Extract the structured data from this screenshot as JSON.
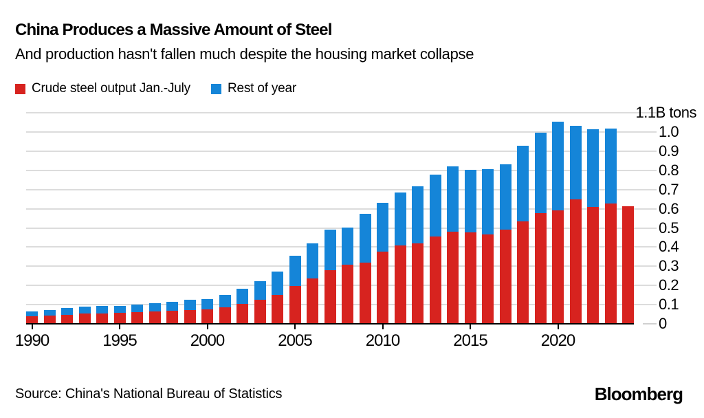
{
  "header": {
    "title": "China Produces a Massive Amount of Steel",
    "subtitle": "And production hasn't fallen much despite the housing market collapse"
  },
  "legend": {
    "items": [
      {
        "label": "Crude steel output Jan.-July",
        "color": "#d7231f"
      },
      {
        "label": "Rest of year",
        "color": "#1585d8"
      }
    ]
  },
  "footer": {
    "source": "Source: China's National Bureau of Statistics",
    "brand": "Bloomberg"
  },
  "colors": {
    "jan_july_red": "#d7231f",
    "rest_of_year_blue": "#1585d8",
    "gridline": "#dcdcdc",
    "axis": "#000000",
    "background": "#ffffff"
  },
  "chart_data": {
    "type": "bar",
    "stacked": true,
    "unit": "B tons",
    "title": "China Produces a Massive Amount of Steel",
    "xlabel": "",
    "ylabel": "1.1B tons",
    "ylim": [
      0,
      1.1
    ],
    "grid": "horizontal",
    "legend_position": "top-left",
    "y_axis_side": "right",
    "categories": [
      1990,
      1991,
      1992,
      1993,
      1994,
      1995,
      1996,
      1997,
      1998,
      1999,
      2000,
      2001,
      2002,
      2003,
      2004,
      2005,
      2006,
      2007,
      2008,
      2009,
      2010,
      2011,
      2012,
      2013,
      2014,
      2015,
      2016,
      2017,
      2018,
      2019,
      2020,
      2021,
      2022,
      2023,
      2024
    ],
    "series": [
      {
        "name": "Crude steel output Jan.-July",
        "color": "#d7231f",
        "values": [
          0.04,
          0.043,
          0.048,
          0.053,
          0.055,
          0.057,
          0.061,
          0.065,
          0.069,
          0.073,
          0.077,
          0.085,
          0.104,
          0.125,
          0.151,
          0.196,
          0.235,
          0.28,
          0.308,
          0.319,
          0.376,
          0.409,
          0.42,
          0.456,
          0.48,
          0.476,
          0.467,
          0.492,
          0.533,
          0.577,
          0.593,
          0.649,
          0.609,
          0.627,
          0.614
        ]
      },
      {
        "name": "Rest of year",
        "color": "#1585d8",
        "values": [
          0.026,
          0.028,
          0.033,
          0.037,
          0.038,
          0.038,
          0.04,
          0.044,
          0.047,
          0.051,
          0.052,
          0.067,
          0.078,
          0.097,
          0.122,
          0.16,
          0.186,
          0.21,
          0.194,
          0.253,
          0.254,
          0.275,
          0.297,
          0.32,
          0.342,
          0.328,
          0.341,
          0.34,
          0.395,
          0.419,
          0.46,
          0.384,
          0.404,
          0.392,
          0.0
        ]
      }
    ],
    "totals": [
      0.066,
      0.071,
      0.081,
      0.09,
      0.093,
      0.095,
      0.101,
      0.109,
      0.116,
      0.124,
      0.129,
      0.152,
      0.182,
      0.222,
      0.273,
      0.356,
      0.421,
      0.49,
      0.502,
      0.572,
      0.63,
      0.684,
      0.717,
      0.776,
      0.822,
      0.804,
      0.808,
      0.832,
      0.928,
      0.996,
      1.053,
      1.033,
      1.013,
      1.019,
      0.614
    ],
    "x_tick_labels": [
      "1990",
      "1995",
      "2000",
      "2005",
      "2010",
      "2015",
      "2020"
    ],
    "y_ticks": [
      {
        "value": 0.0,
        "label": "0"
      },
      {
        "value": 0.1,
        "label": "0.1"
      },
      {
        "value": 0.2,
        "label": "0.2"
      },
      {
        "value": 0.3,
        "label": "0.3"
      },
      {
        "value": 0.4,
        "label": "0.4"
      },
      {
        "value": 0.5,
        "label": "0.5"
      },
      {
        "value": 0.6,
        "label": "0.6"
      },
      {
        "value": 0.7,
        "label": "0.7"
      },
      {
        "value": 0.8,
        "label": "0.8"
      },
      {
        "value": 0.9,
        "label": "0.9"
      },
      {
        "value": 1.0,
        "label": "1.0"
      },
      {
        "value": 1.1,
        "label": "1.1B tons"
      }
    ]
  }
}
